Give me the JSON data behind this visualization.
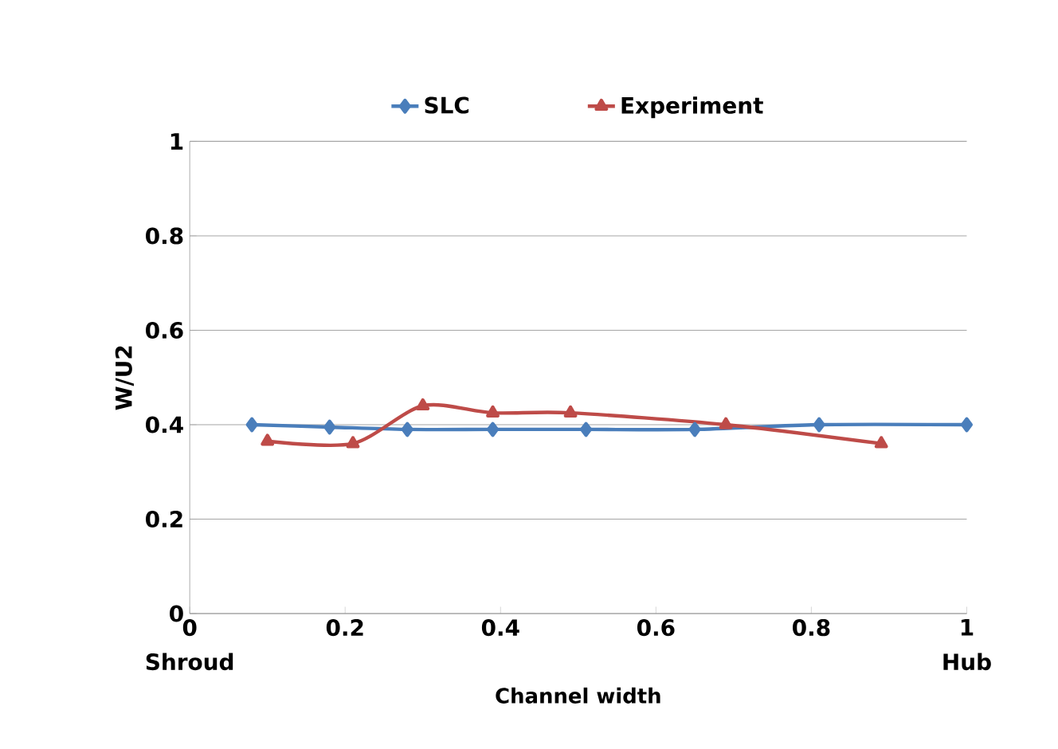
{
  "chart_data": {
    "type": "line",
    "xlabel": "Channel width",
    "ylabel": "W/U2",
    "xlim": [
      0,
      1
    ],
    "xticks": [
      0,
      0.2,
      0.4,
      0.6,
      0.8,
      1
    ],
    "ylim": [
      0,
      1
    ],
    "yticks": [
      0,
      0.2,
      0.4,
      0.6,
      0.8,
      1
    ],
    "grid": "y",
    "legend": "top",
    "annotations": [
      "Shroud",
      "Hub"
    ],
    "series": [
      {
        "name": "SLC",
        "color": "#4a7ebb",
        "marker": "diamond",
        "x": [
          0.08,
          0.18,
          0.28,
          0.39,
          0.51,
          0.65,
          0.81,
          1.0
        ],
        "values": [
          0.4,
          0.395,
          0.39,
          0.39,
          0.39,
          0.39,
          0.4,
          0.4
        ]
      },
      {
        "name": "Experiment",
        "color": "#be4b48",
        "marker": "triangle",
        "x": [
          0.1,
          0.21,
          0.3,
          0.39,
          0.49,
          0.69,
          0.89
        ],
        "values": [
          0.365,
          0.36,
          0.44,
          0.425,
          0.425,
          0.4,
          0.36
        ]
      }
    ]
  }
}
